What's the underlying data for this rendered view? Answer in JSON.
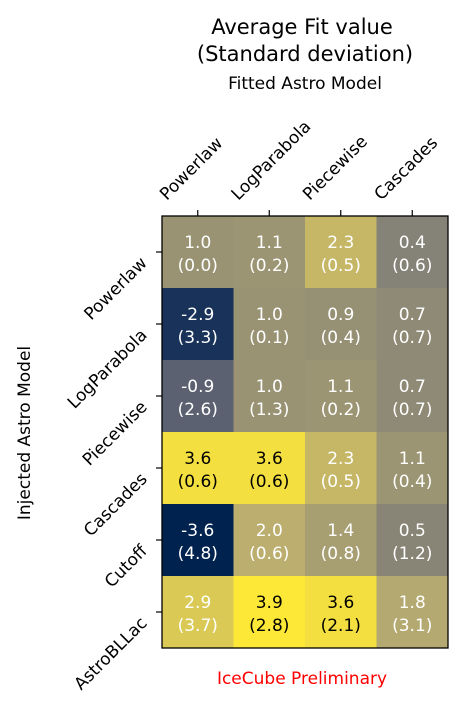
{
  "chart_data": {
    "type": "heatmap",
    "title": "Average Fit value\n(Standard deviation)",
    "xlabel": "Fitted Astro Model",
    "ylabel": "Injected Astro Model",
    "x_categories": [
      "Powerlaw",
      "LogParabola",
      "Piecewise",
      "Cascades"
    ],
    "y_categories": [
      "Powerlaw",
      "LogParabola",
      "Piecewise",
      "Cascades",
      "Cutoff",
      "AstroBLLac"
    ],
    "values": [
      [
        1.0,
        1.1,
        2.3,
        0.4
      ],
      [
        -2.9,
        1.0,
        0.9,
        0.7
      ],
      [
        -0.9,
        1.0,
        1.1,
        0.7
      ],
      [
        3.6,
        3.6,
        2.3,
        1.1
      ],
      [
        -3.6,
        2.0,
        1.4,
        0.5
      ],
      [
        2.9,
        3.9,
        3.6,
        1.8
      ]
    ],
    "std": [
      [
        0.0,
        0.2,
        0.5,
        0.6
      ],
      [
        3.3,
        0.1,
        0.4,
        0.7
      ],
      [
        2.6,
        1.3,
        0.2,
        0.7
      ],
      [
        0.6,
        0.6,
        0.5,
        0.4
      ],
      [
        4.8,
        0.6,
        0.8,
        1.2
      ],
      [
        3.7,
        2.8,
        2.1,
        3.1
      ]
    ],
    "colormap": "cividis",
    "color_range": [
      -3.6,
      3.9
    ],
    "annotation": "IceCube Preliminary",
    "annotation_color": "#ff0000"
  }
}
